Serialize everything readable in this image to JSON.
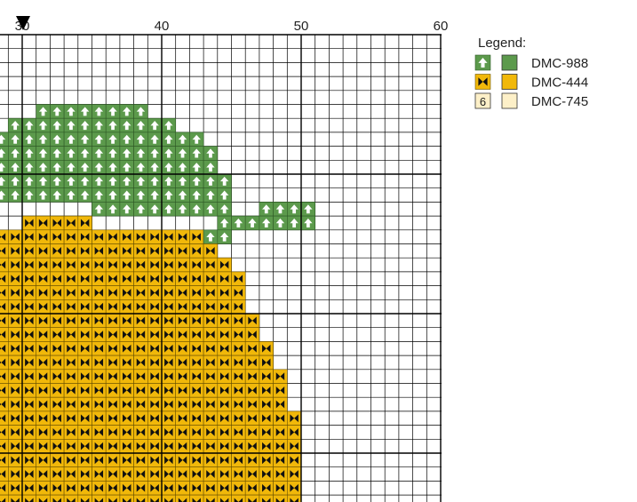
{
  "column_labels": [
    "30",
    "40",
    "50",
    "60"
  ],
  "legend": {
    "title": "Legend:",
    "items": [
      {
        "name": "DMC-988"
      },
      {
        "name": "DMC-444"
      },
      {
        "symbol": "6",
        "name": "DMC-745"
      }
    ]
  }
}
